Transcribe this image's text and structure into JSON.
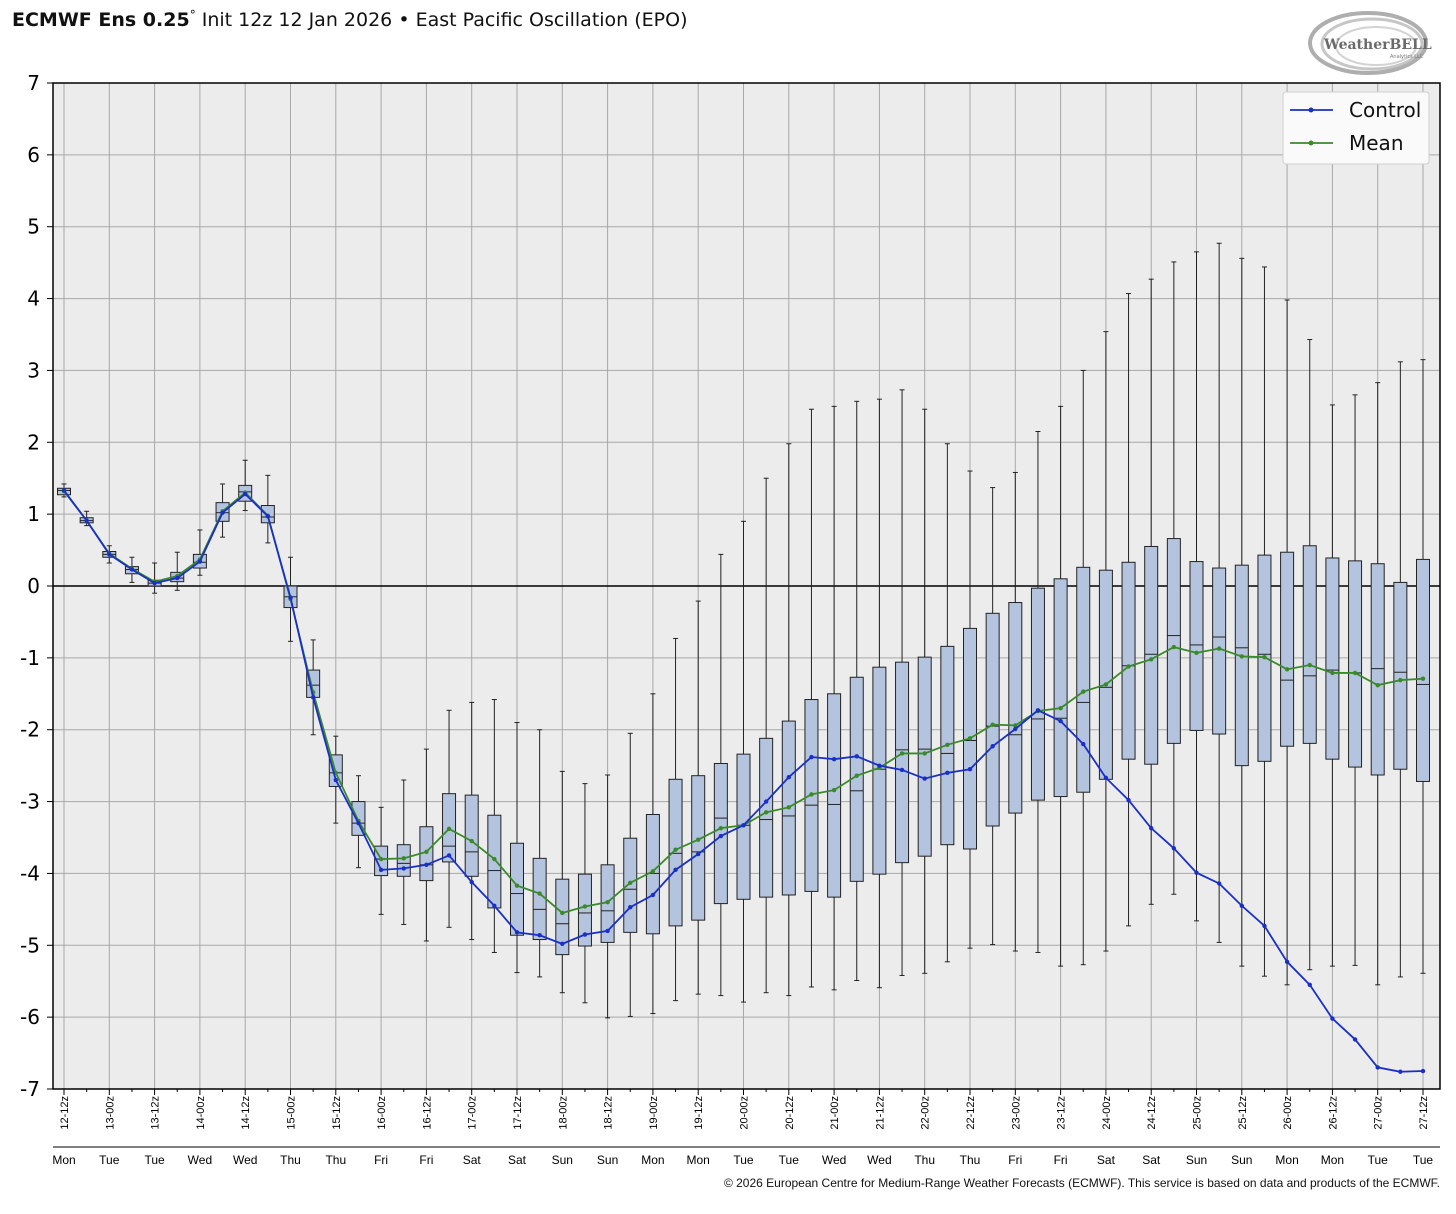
{
  "header": {
    "model": "ECMWF Ens 0.25",
    "degree": "°",
    "init": "Init 12z 12 Jan 2026",
    "bullet": "•",
    "index_name": "East Pacific Oscillation (EPO)"
  },
  "logo": {
    "text": "WeatherBELL",
    "subtext": "Analytics LLC"
  },
  "footer": {
    "copyright": "© 2026 European Centre for Medium-Range Weather Forecasts (ECMWF). This service is based on data and products of the ECMWF."
  },
  "colors": {
    "control": "#1a2fc8",
    "mean": "#3a8a2a",
    "box_fill": "#b4c4de",
    "plot_bg": "#ececec",
    "grid": "#a8a8a8"
  },
  "chart_data": {
    "type": "box",
    "title": "ECMWF Ens 0.25° Init 12z 12 Jan 2026 • East Pacific Oscillation (EPO)",
    "ylim": [
      -7,
      7
    ],
    "yticks": [
      7,
      6,
      5,
      4,
      3,
      2,
      1,
      0,
      -1,
      -2,
      -3,
      -4,
      -5,
      -6,
      -7
    ],
    "grid": true,
    "zero_line": true,
    "legend": {
      "placement": "top-right",
      "entries": [
        "Control",
        "Mean"
      ]
    },
    "categories": [
      "12-12z",
      "13-00z",
      "13-12z",
      "14-00z",
      "14-12z",
      "15-00z",
      "15-12z",
      "16-00z",
      "16-12z",
      "17-00z",
      "17-12z",
      "18-00z",
      "18-12z",
      "19-00z",
      "19-12z",
      "20-00z",
      "20-12z",
      "21-00z",
      "21-12z",
      "22-00z",
      "22-12z",
      "23-00z",
      "23-12z",
      "24-00z",
      "24-12z",
      "25-00z",
      "25-12z",
      "26-00z",
      "26-12z",
      "27-00z",
      "27-12z"
    ],
    "days": [
      "Mon",
      "Tue",
      "Tue",
      "Wed",
      "Wed",
      "Thu",
      "Thu",
      "Fri",
      "Fri",
      "Sat",
      "Sat",
      "Sun",
      "Sun",
      "Mon",
      "Mon",
      "Tue",
      "Tue",
      "Wed",
      "Wed",
      "Thu",
      "Thu",
      "Fri",
      "Fri",
      "Sat",
      "Sat",
      "Sun",
      "Sun",
      "Mon",
      "Mon",
      "Tue",
      "Tue"
    ],
    "x_step_hours": 6,
    "boxes": [
      {
        "min": 1.24,
        "q1": 1.27,
        "median": 1.33,
        "q3": 1.36,
        "max": 1.42
      },
      {
        "min": 0.84,
        "q1": 0.88,
        "median": 0.91,
        "q3": 0.95,
        "max": 1.04
      },
      {
        "min": 0.32,
        "q1": 0.4,
        "median": 0.44,
        "q3": 0.48,
        "max": 0.56
      },
      {
        "min": 0.05,
        "q1": 0.17,
        "median": 0.23,
        "q3": 0.27,
        "max": 0.4
      },
      {
        "min": -0.1,
        "q1": 0.0,
        "median": 0.04,
        "q3": 0.08,
        "max": 0.32
      },
      {
        "min": -0.06,
        "q1": 0.06,
        "median": 0.11,
        "q3": 0.19,
        "max": 0.47
      },
      {
        "min": 0.15,
        "q1": 0.25,
        "median": 0.33,
        "q3": 0.44,
        "max": 0.78
      },
      {
        "min": 0.68,
        "q1": 0.9,
        "median": 1.02,
        "q3": 1.16,
        "max": 1.42
      },
      {
        "min": 1.05,
        "q1": 1.18,
        "median": 1.31,
        "q3": 1.4,
        "max": 1.75
      },
      {
        "min": 0.6,
        "q1": 0.88,
        "median": 0.96,
        "q3": 1.12,
        "max": 1.54
      },
      {
        "min": -0.77,
        "q1": -0.3,
        "median": -0.15,
        "q3": 0.0,
        "max": 0.4
      },
      {
        "min": -2.07,
        "q1": -1.55,
        "median": -1.38,
        "q3": -1.17,
        "max": -0.75
      },
      {
        "min": -3.3,
        "q1": -2.79,
        "median": -2.6,
        "q3": -2.35,
        "max": -2.09
      },
      {
        "min": -3.92,
        "q1": -3.47,
        "median": -3.3,
        "q3": -3.0,
        "max": -2.64
      },
      {
        "min": -4.57,
        "q1": -4.03,
        "median": -3.8,
        "q3": -3.62,
        "max": -3.08
      },
      {
        "min": -4.71,
        "q1": -4.04,
        "median": -3.86,
        "q3": -3.6,
        "max": -2.7
      },
      {
        "min": -4.94,
        "q1": -4.1,
        "median": -3.88,
        "q3": -3.35,
        "max": -2.27
      },
      {
        "min": -4.75,
        "q1": -3.84,
        "median": -3.62,
        "q3": -2.89,
        "max": -1.73
      },
      {
        "min": -4.92,
        "q1": -4.04,
        "median": -3.7,
        "q3": -2.91,
        "max": -1.62
      },
      {
        "min": -5.1,
        "q1": -4.48,
        "median": -3.96,
        "q3": -3.19,
        "max": -1.58
      },
      {
        "min": -5.38,
        "q1": -4.86,
        "median": -4.28,
        "q3": -3.58,
        "max": -1.9
      },
      {
        "min": -5.44,
        "q1": -4.92,
        "median": -4.5,
        "q3": -3.79,
        "max": -2.0
      },
      {
        "min": -5.66,
        "q1": -5.13,
        "median": -4.7,
        "q3": -4.08,
        "max": -2.58
      },
      {
        "min": -5.8,
        "q1": -5.01,
        "median": -4.55,
        "q3": -4.01,
        "max": -2.75
      },
      {
        "min": -6.01,
        "q1": -4.96,
        "median": -4.52,
        "q3": -3.88,
        "max": -2.63
      },
      {
        "min": -5.99,
        "q1": -4.82,
        "median": -4.22,
        "q3": -3.51,
        "max": -2.05
      },
      {
        "min": -5.95,
        "q1": -4.84,
        "median": -4.0,
        "q3": -3.18,
        "max": -1.5
      },
      {
        "min": -5.77,
        "q1": -4.73,
        "median": -3.72,
        "q3": -2.69,
        "max": -0.73
      },
      {
        "min": -5.68,
        "q1": -4.65,
        "median": -3.7,
        "q3": -2.64,
        "max": -0.21
      },
      {
        "min": -5.7,
        "q1": -4.42,
        "median": -3.23,
        "q3": -2.47,
        "max": 0.44
      },
      {
        "min": -5.79,
        "q1": -4.36,
        "median": -3.33,
        "q3": -2.34,
        "max": 0.9
      },
      {
        "min": -5.66,
        "q1": -4.33,
        "median": -3.25,
        "q3": -2.12,
        "max": 1.5
      },
      {
        "min": -5.7,
        "q1": -4.3,
        "median": -3.2,
        "q3": -1.88,
        "max": 1.98
      },
      {
        "min": -5.58,
        "q1": -4.25,
        "median": -3.05,
        "q3": -1.58,
        "max": 2.46
      },
      {
        "min": -5.62,
        "q1": -4.33,
        "median": -3.04,
        "q3": -1.5,
        "max": 2.5
      },
      {
        "min": -5.49,
        "q1": -4.11,
        "median": -2.85,
        "q3": -1.27,
        "max": 2.57
      },
      {
        "min": -5.59,
        "q1": -4.01,
        "median": -2.55,
        "q3": -1.13,
        "max": 2.6
      },
      {
        "min": -5.42,
        "q1": -3.85,
        "median": -2.28,
        "q3": -1.06,
        "max": 2.73
      },
      {
        "min": -5.39,
        "q1": -3.76,
        "median": -2.27,
        "q3": -0.99,
        "max": 2.46
      },
      {
        "min": -5.23,
        "q1": -3.6,
        "median": -2.33,
        "q3": -0.84,
        "max": 1.98
      },
      {
        "min": -5.04,
        "q1": -3.66,
        "median": -2.15,
        "q3": -0.59,
        "max": 1.6
      },
      {
        "min": -4.99,
        "q1": -3.34,
        "median": -1.95,
        "q3": -0.38,
        "max": 1.37
      },
      {
        "min": -5.08,
        "q1": -3.16,
        "median": -2.07,
        "q3": -0.23,
        "max": 1.58
      },
      {
        "min": -5.1,
        "q1": -2.98,
        "median": -1.85,
        "q3": -0.03,
        "max": 2.15
      },
      {
        "min": -5.29,
        "q1": -2.93,
        "median": -1.84,
        "q3": 0.1,
        "max": 2.5
      },
      {
        "min": -5.27,
        "q1": -2.87,
        "median": -1.62,
        "q3": 0.26,
        "max": 3.0
      },
      {
        "min": -5.08,
        "q1": -2.69,
        "median": -1.41,
        "q3": 0.22,
        "max": 3.54
      },
      {
        "min": -4.73,
        "q1": -2.41,
        "median": -1.11,
        "q3": 0.33,
        "max": 4.07
      },
      {
        "min": -4.43,
        "q1": -2.48,
        "median": -0.95,
        "q3": 0.55,
        "max": 4.27
      },
      {
        "min": -4.29,
        "q1": -2.19,
        "median": -0.69,
        "q3": 0.66,
        "max": 4.51
      },
      {
        "min": -4.66,
        "q1": -2.01,
        "median": -0.82,
        "q3": 0.34,
        "max": 4.65
      },
      {
        "min": -4.96,
        "q1": -2.06,
        "median": -0.71,
        "q3": 0.25,
        "max": 4.77
      },
      {
        "min": -5.29,
        "q1": -2.5,
        "median": -0.86,
        "q3": 0.29,
        "max": 4.56
      },
      {
        "min": -5.43,
        "q1": -2.44,
        "median": -0.95,
        "q3": 0.43,
        "max": 4.44
      },
      {
        "min": -5.55,
        "q1": -2.23,
        "median": -1.31,
        "q3": 0.47,
        "max": 3.98
      },
      {
        "min": -5.34,
        "q1": -2.19,
        "median": -1.25,
        "q3": 0.56,
        "max": 3.43
      },
      {
        "min": -5.29,
        "q1": -2.41,
        "median": -1.17,
        "q3": 0.39,
        "max": 2.52
      },
      {
        "min": -5.28,
        "q1": -2.52,
        "median": -1.21,
        "q3": 0.35,
        "max": 2.66
      },
      {
        "min": -5.55,
        "q1": -2.63,
        "median": -1.15,
        "q3": 0.31,
        "max": 2.83
      },
      {
        "min": -5.44,
        "q1": -2.55,
        "median": -1.2,
        "q3": 0.05,
        "max": 3.12
      },
      {
        "min": -5.39,
        "q1": -2.72,
        "median": -1.37,
        "q3": 0.37,
        "max": 3.15
      }
    ],
    "series": [
      {
        "name": "Control",
        "values": [
          1.33,
          0.91,
          0.44,
          0.23,
          0.04,
          0.11,
          0.34,
          1.02,
          1.28,
          0.97,
          -0.16,
          -1.55,
          -2.7,
          -3.3,
          -3.95,
          -3.93,
          -3.88,
          -3.75,
          -4.12,
          -4.45,
          -4.82,
          -4.86,
          -4.98,
          -4.85,
          -4.8,
          -4.47,
          -4.3,
          -3.95,
          -3.73,
          -3.48,
          -3.33,
          -3.0,
          -2.66,
          -2.38,
          -2.41,
          -2.37,
          -2.5,
          -2.56,
          -2.68,
          -2.6,
          -2.55,
          -2.23,
          -1.99,
          -1.73,
          -1.88,
          -2.2,
          -2.67,
          -2.98,
          -3.37,
          -3.65,
          -3.99,
          -4.14,
          -4.45,
          -4.73,
          -5.23,
          -5.55,
          -6.02,
          -6.31,
          -6.7,
          -6.76,
          -6.75
        ]
      },
      {
        "name": "Mean",
        "values": [
          1.32,
          0.91,
          0.45,
          0.24,
          0.06,
          0.14,
          0.37,
          1.04,
          1.3,
          0.98,
          -0.18,
          -1.48,
          -2.6,
          -3.27,
          -3.8,
          -3.79,
          -3.7,
          -3.38,
          -3.55,
          -3.8,
          -4.17,
          -4.28,
          -4.55,
          -4.46,
          -4.4,
          -4.13,
          -3.97,
          -3.67,
          -3.53,
          -3.37,
          -3.33,
          -3.15,
          -3.08,
          -2.9,
          -2.84,
          -2.64,
          -2.53,
          -2.33,
          -2.33,
          -2.21,
          -2.12,
          -1.93,
          -1.94,
          -1.74,
          -1.7,
          -1.47,
          -1.37,
          -1.12,
          -1.02,
          -0.85,
          -0.93,
          -0.87,
          -0.98,
          -0.99,
          -1.16,
          -1.1,
          -1.21,
          -1.21,
          -1.38,
          -1.31,
          -1.29
        ]
      }
    ]
  }
}
